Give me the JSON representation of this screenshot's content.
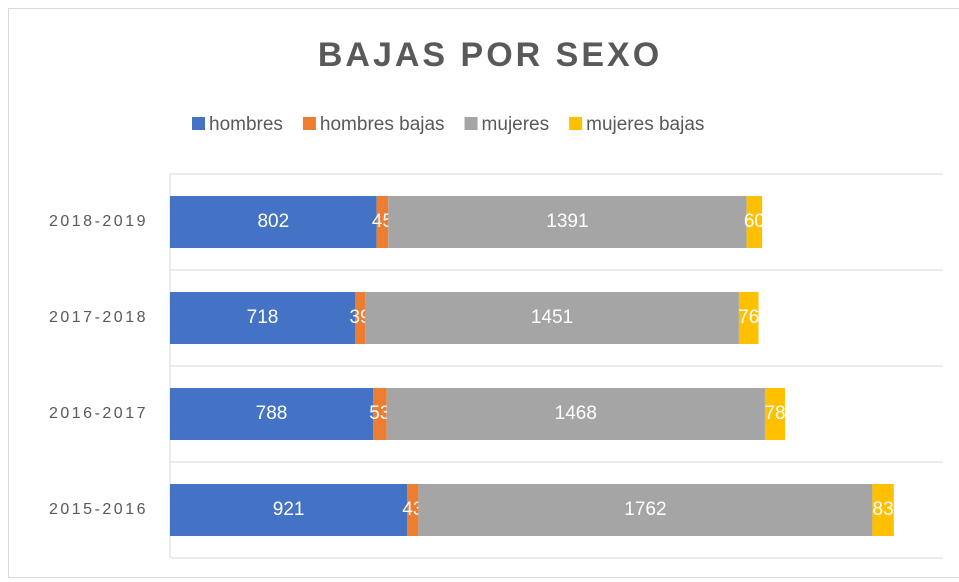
{
  "chart_data": {
    "type": "stacked_bar_horizontal",
    "title": "BAJAS POR SEXO",
    "categories": [
      "2018-2019",
      "2017-2018",
      "2016-2017",
      "2015-2016"
    ],
    "series": [
      {
        "name": "hombres",
        "color": "#4472c4",
        "values": [
          802,
          718,
          788,
          921
        ]
      },
      {
        "name": "hombres bajas",
        "color": "#ed7d31",
        "values": [
          45,
          39,
          53,
          43
        ]
      },
      {
        "name": "mujeres",
        "color": "#a5a5a5",
        "values": [
          1391,
          1451,
          1468,
          1762
        ]
      },
      {
        "name": "mujeres bajas",
        "color": "#ffc000",
        "values": [
          60,
          76,
          78,
          83
        ]
      }
    ],
    "xlim": [
      0,
      3000
    ],
    "legend": "top"
  }
}
